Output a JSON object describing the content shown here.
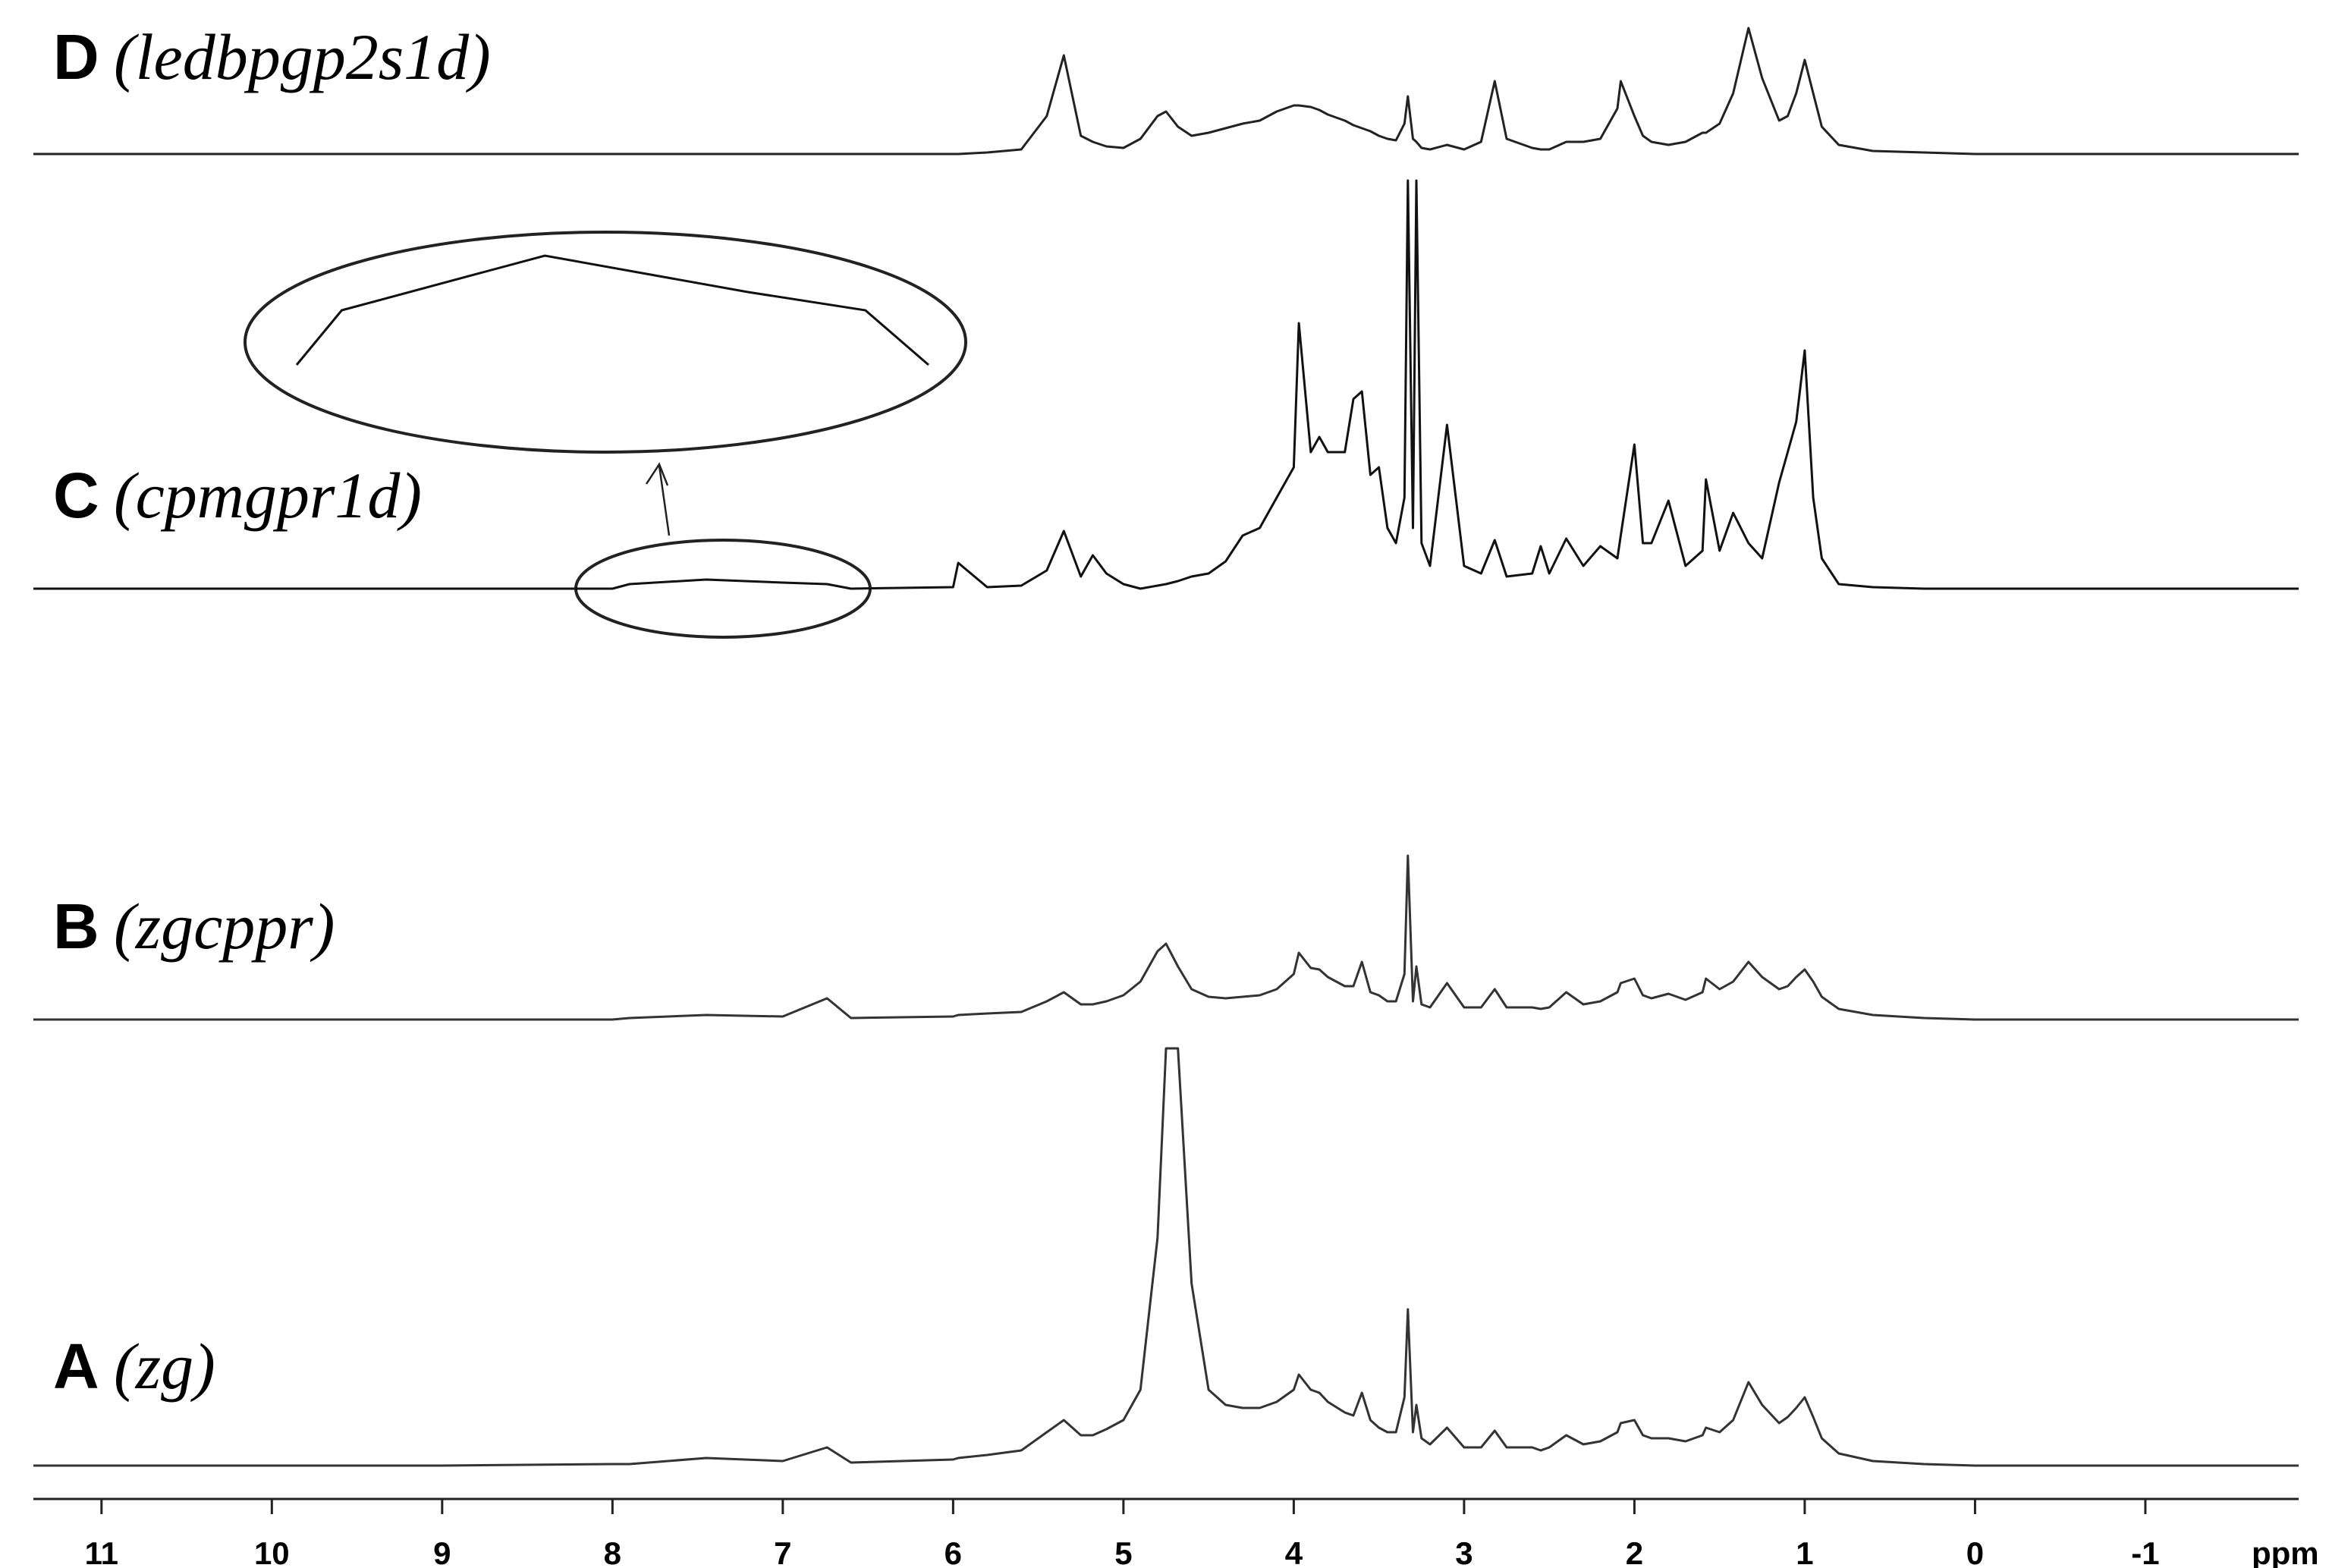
{
  "chart_data": {
    "type": "line",
    "x_label": "ppm",
    "x": [
      11.4,
      10,
      9,
      8,
      7.9,
      7.45,
      7.0,
      6.74,
      6.6,
      6.0,
      5.97,
      5.8,
      5.6,
      5.45,
      5.35,
      5.25,
      5.18,
      5.1,
      5.0,
      4.9,
      4.8,
      4.75,
      4.68,
      4.6,
      4.5,
      4.4,
      4.3,
      4.2,
      4.1,
      4.0,
      3.97,
      3.9,
      3.85,
      3.8,
      3.7,
      3.65,
      3.6,
      3.55,
      3.5,
      3.45,
      3.4,
      3.35,
      3.33,
      3.3,
      3.28,
      3.25,
      3.2,
      3.1,
      3.0,
      2.9,
      2.82,
      2.75,
      2.6,
      2.55,
      2.5,
      2.4,
      2.3,
      2.2,
      2.1,
      2.08,
      2.0,
      1.95,
      1.9,
      1.8,
      1.7,
      1.6,
      1.58,
      1.5,
      1.42,
      1.33,
      1.25,
      1.15,
      1.1,
      1.05,
      1.0,
      0.95,
      0.9,
      0.8,
      0.6,
      0.3,
      0,
      -1,
      -1.9
    ],
    "xlim": [
      11.4,
      -1.9
    ],
    "xticks": [
      11,
      10,
      9,
      8,
      7,
      6,
      5,
      4,
      3,
      2,
      1,
      0,
      -1
    ],
    "series": [
      {
        "tag": "D",
        "name": "(ledbpgp2s1d)",
        "color": "#222222",
        "values": [
          0,
          0,
          0,
          0,
          0,
          0,
          0,
          0,
          0,
          0,
          0,
          1,
          3,
          25,
          65,
          12,
          8,
          5,
          4,
          10,
          25,
          28,
          18,
          12,
          14,
          17,
          20,
          22,
          28,
          32,
          32,
          31,
          29,
          26,
          22,
          19,
          17,
          15,
          12,
          10,
          9,
          20,
          38,
          10,
          8,
          4,
          3,
          6,
          3,
          8,
          48,
          10,
          4,
          3,
          3,
          8,
          8,
          10,
          30,
          48,
          25,
          12,
          8,
          6,
          8,
          14,
          14,
          20,
          40,
          83,
          50,
          22,
          25,
          40,
          62,
          40,
          18,
          6,
          2,
          1,
          0,
          0,
          0
        ]
      },
      {
        "tag": "C",
        "name": "(cpmgpr1d)",
        "color": "#111111",
        "values": [
          0,
          0,
          0,
          0,
          3,
          6,
          4,
          3,
          0,
          1,
          17,
          1,
          2,
          12,
          38,
          8,
          22,
          10,
          3,
          0,
          2,
          3,
          5,
          8,
          10,
          18,
          35,
          40,
          60,
          80,
          175,
          90,
          100,
          90,
          90,
          125,
          130,
          75,
          80,
          40,
          30,
          60,
          269,
          40,
          269,
          30,
          15,
          108,
          15,
          10,
          32,
          8,
          10,
          28,
          10,
          33,
          15,
          28,
          20,
          35,
          95,
          30,
          30,
          58,
          15,
          25,
          72,
          25,
          50,
          30,
          20,
          70,
          90,
          110,
          157,
          60,
          20,
          3,
          1,
          0,
          0,
          0,
          0
        ]
      },
      {
        "tag": "B",
        "name": "(zgcppr)",
        "color": "#333333",
        "values": [
          0,
          0,
          0,
          0,
          1,
          3,
          2,
          14,
          1,
          2,
          3,
          4,
          5,
          12,
          18,
          10,
          10,
          12,
          16,
          25,
          45,
          50,
          35,
          20,
          15,
          14,
          15,
          16,
          20,
          30,
          44,
          34,
          33,
          28,
          22,
          22,
          38,
          18,
          16,
          12,
          12,
          30,
          108,
          12,
          35,
          10,
          8,
          24,
          8,
          8,
          20,
          8,
          8,
          7,
          8,
          18,
          10,
          12,
          18,
          24,
          27,
          16,
          14,
          17,
          13,
          18,
          27,
          20,
          25,
          38,
          28,
          20,
          22,
          28,
          33,
          25,
          15,
          7,
          3,
          1,
          0,
          0,
          0
        ]
      },
      {
        "tag": "A",
        "name": "(zg)",
        "color": "#333333",
        "values": [
          0,
          0,
          0,
          1,
          1,
          5,
          3,
          12,
          2,
          4,
          5,
          7,
          10,
          22,
          30,
          20,
          20,
          24,
          30,
          50,
          150,
          275,
          275,
          120,
          50,
          40,
          38,
          38,
          42,
          50,
          60,
          50,
          48,
          42,
          35,
          33,
          48,
          30,
          25,
          22,
          22,
          45,
          103,
          22,
          40,
          18,
          14,
          25,
          12,
          12,
          23,
          12,
          12,
          10,
          12,
          20,
          14,
          16,
          22,
          28,
          30,
          20,
          18,
          18,
          16,
          20,
          25,
          22,
          30,
          55,
          40,
          28,
          32,
          38,
          45,
          32,
          18,
          8,
          3,
          1,
          0,
          0,
          0
        ]
      }
    ],
    "inset": {
      "series": 1,
      "xlim": [
        8,
        6.6
      ]
    }
  }
}
